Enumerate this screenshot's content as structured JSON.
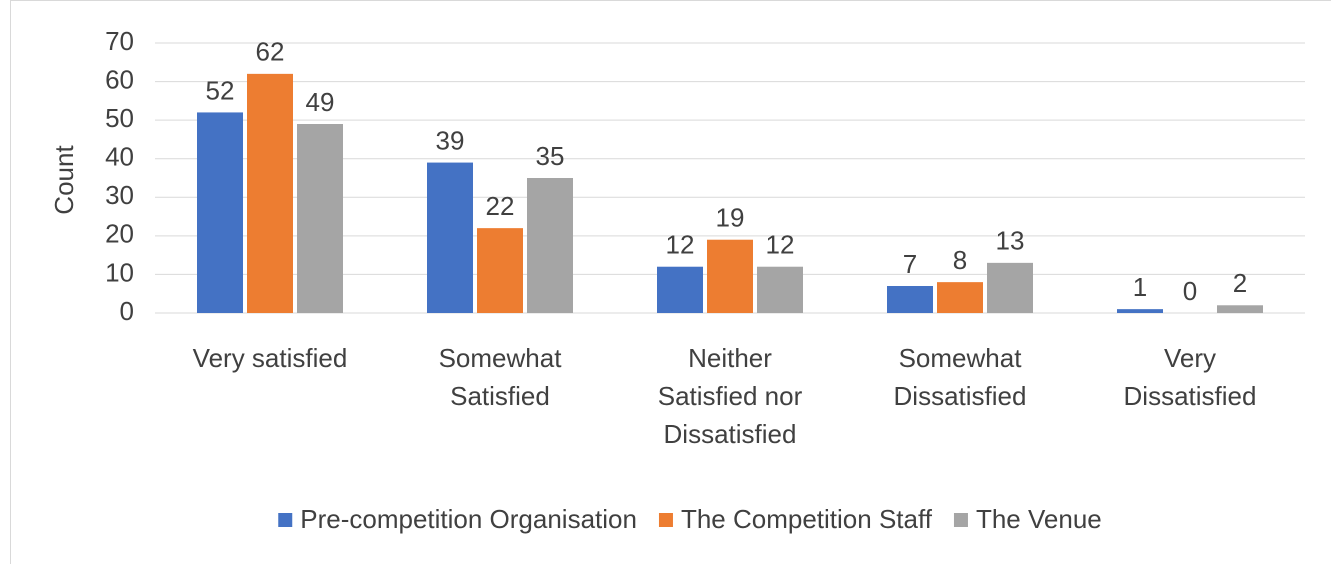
{
  "chart_data": {
    "type": "bar",
    "y_label": "Count",
    "categories": [
      [
        "Very satisfied"
      ],
      [
        "Somewhat",
        "Satisfied"
      ],
      [
        "Neither",
        "Satisfied nor",
        "Dissatisfied"
      ],
      [
        "Somewhat",
        "Dissatisfied"
      ],
      [
        "Very",
        "Dissatisfied"
      ]
    ],
    "series": [
      {
        "name": "Pre-competition Organisation",
        "color": "#4472c4",
        "values": [
          52,
          39,
          12,
          7,
          1
        ]
      },
      {
        "name": "The Competition Staff",
        "color": "#ed7d31",
        "values": [
          62,
          22,
          19,
          8,
          0
        ]
      },
      {
        "name": "The Venue",
        "color": "#a5a5a5",
        "values": [
          49,
          35,
          12,
          13,
          2
        ]
      }
    ],
    "ylim": [
      0,
      70
    ],
    "yticks": [
      0,
      10,
      20,
      30,
      40,
      50,
      60,
      70
    ],
    "grid": true,
    "legend": "bottom"
  }
}
